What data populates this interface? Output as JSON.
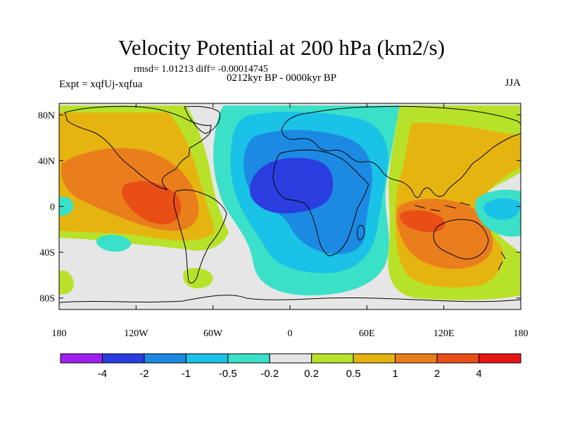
{
  "title": "Velocity Potential at 200 hPa (km2/s)",
  "stats": "rmsd= 1.01213 diff= -0.00014745",
  "expt_label": "Expt = xqfUj-xqfua",
  "period": "0212kyr BP - 0000kyr BP",
  "season": "JJA",
  "axes": {
    "lat_ticks": [
      {
        "label": "80N",
        "value": 80
      },
      {
        "label": "40N",
        "value": 40
      },
      {
        "label": "0",
        "value": 0
      },
      {
        "label": "40S",
        "value": -40
      },
      {
        "label": "80S",
        "value": -80
      }
    ],
    "lon_ticks": [
      {
        "label": "180",
        "value": -180
      },
      {
        "label": "120W",
        "value": -120
      },
      {
        "label": "60W",
        "value": -60
      },
      {
        "label": "0",
        "value": 0
      },
      {
        "label": "60E",
        "value": 60
      },
      {
        "label": "120E",
        "value": 120
      },
      {
        "label": "180",
        "value": 180
      }
    ],
    "lat_range": [
      -90,
      90
    ],
    "lon_range": [
      -180,
      180
    ]
  },
  "colorbar": {
    "colors": [
      "#a020f0",
      "#2a3ee0",
      "#1c8ae2",
      "#19c2e6",
      "#3ae0c8",
      "#e4e4e4",
      "#b8e22a",
      "#e6b410",
      "#ea7e1c",
      "#e84e16",
      "#e81414"
    ],
    "labels": [
      "-4",
      "-2",
      "-1",
      "-0.5",
      "-0.2",
      "0.2",
      "0.5",
      "1",
      "2",
      "4"
    ]
  },
  "field_colors": {
    "background": "#e6e6e6",
    "lvl_pos_02": "#b8e22a",
    "lvl_pos_05": "#e6b410",
    "lvl_pos_1": "#ea7e1c",
    "lvl_pos_2": "#e84e16",
    "lvl_neg_02": "#3ae0c8",
    "lvl_neg_05": "#19c2e6",
    "lvl_neg_1": "#1c8ae2",
    "lvl_neg_2": "#2a3ee0"
  }
}
